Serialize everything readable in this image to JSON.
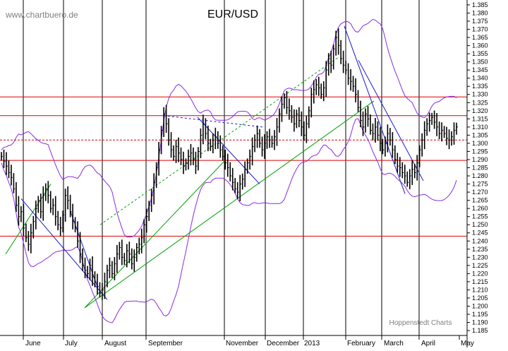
{
  "watermark": "www.chartbuero.de",
  "footer_credit": "Hoppenstedt Charts",
  "colors": {
    "price": "#000000",
    "bands": "#8a2be2",
    "support_resistance": "#dd0000",
    "trend_green": "#00a000",
    "trend_blue": "#1a1acc",
    "grid": "#000000",
    "watermark": "#808080"
  },
  "chart_data": {
    "type": "line",
    "title": "EUR/USD",
    "x_labels": [
      "June",
      "July",
      "August",
      "September",
      "November",
      "December",
      "2013",
      "February",
      "March",
      "April",
      "May"
    ],
    "y_ticks": [
      1.185,
      1.19,
      1.195,
      1.2,
      1.205,
      1.21,
      1.215,
      1.22,
      1.225,
      1.23,
      1.235,
      1.24,
      1.245,
      1.25,
      1.255,
      1.26,
      1.265,
      1.27,
      1.275,
      1.28,
      1.285,
      1.29,
      1.295,
      1.3,
      1.305,
      1.31,
      1.315,
      1.32,
      1.325,
      1.33,
      1.335,
      1.34,
      1.345,
      1.35,
      1.355,
      1.36,
      1.365,
      1.37,
      1.375,
      1.38,
      1.385
    ],
    "ylim": [
      1.182,
      1.388
    ],
    "y_axis_side": "right",
    "grid": "vertical month lines only",
    "horizontal_levels": [
      {
        "value": 1.3285,
        "style": "solid"
      },
      {
        "value": 1.317,
        "style": "solid"
      },
      {
        "value": 1.302,
        "style": "dashed"
      },
      {
        "value": 1.2895,
        "style": "solid"
      },
      {
        "value": 1.243,
        "style": "solid"
      }
    ],
    "series": [
      {
        "kind": "daily price bars",
        "values": [
          1.292,
          1.289,
          1.286,
          1.282,
          1.279,
          1.272,
          1.262,
          1.255,
          1.258,
          1.248,
          1.242,
          1.238,
          1.245,
          1.252,
          1.26,
          1.265,
          1.258,
          1.268,
          1.272,
          1.268,
          1.26,
          1.262,
          1.255,
          1.25,
          1.248,
          1.256,
          1.268,
          1.265,
          1.258,
          1.252,
          1.248,
          1.24,
          1.232,
          1.225,
          1.222,
          1.22,
          1.225,
          1.218,
          1.215,
          1.212,
          1.208,
          1.21,
          1.215,
          1.222,
          1.225,
          1.22,
          1.226,
          1.232,
          1.236,
          1.23,
          1.228,
          1.234,
          1.232,
          1.226,
          1.23,
          1.236,
          1.238,
          1.242,
          1.25,
          1.255,
          1.262,
          1.268,
          1.276,
          1.285,
          1.296,
          1.308,
          1.318,
          1.312,
          1.302,
          1.296,
          1.292,
          1.298,
          1.294,
          1.29,
          1.286,
          1.288,
          1.292,
          1.294,
          1.29,
          1.286,
          1.295,
          1.305,
          1.312,
          1.306,
          1.3,
          1.298,
          1.302,
          1.304,
          1.3,
          1.296,
          1.292,
          1.288,
          1.285,
          1.28,
          1.276,
          1.272,
          1.27,
          1.275,
          1.278,
          1.284,
          1.288,
          1.292,
          1.298,
          1.302,
          1.306,
          1.3,
          1.296,
          1.3,
          1.304,
          1.302,
          1.3,
          1.304,
          1.31,
          1.318,
          1.324,
          1.328,
          1.322,
          1.32,
          1.316,
          1.312,
          1.318,
          1.314,
          1.31,
          1.305,
          1.312,
          1.32,
          1.33,
          1.333,
          1.336,
          1.334,
          1.33,
          1.334,
          1.345,
          1.352,
          1.348,
          1.358,
          1.365,
          1.36,
          1.352,
          1.348,
          1.345,
          1.34,
          1.338,
          1.335,
          1.33,
          1.322,
          1.314,
          1.31,
          1.318,
          1.315,
          1.308,
          1.306,
          1.31,
          1.305,
          1.3,
          1.296,
          1.3,
          1.306,
          1.302,
          1.296,
          1.29,
          1.286,
          1.285,
          1.282,
          1.28,
          1.276,
          1.28,
          1.284,
          1.282,
          1.288,
          1.296,
          1.302,
          1.308,
          1.312,
          1.314,
          1.316,
          1.313,
          1.31,
          1.306,
          1.308,
          1.306,
          1.303,
          1.302,
          1.304,
          1.308,
          1.31
        ]
      }
    ],
    "bollinger_bands": "upper and lower envelope around price (purple)",
    "trendlines": "green rising support lines from August low, blue falling channel lines, dashed green/blue extensions"
  }
}
